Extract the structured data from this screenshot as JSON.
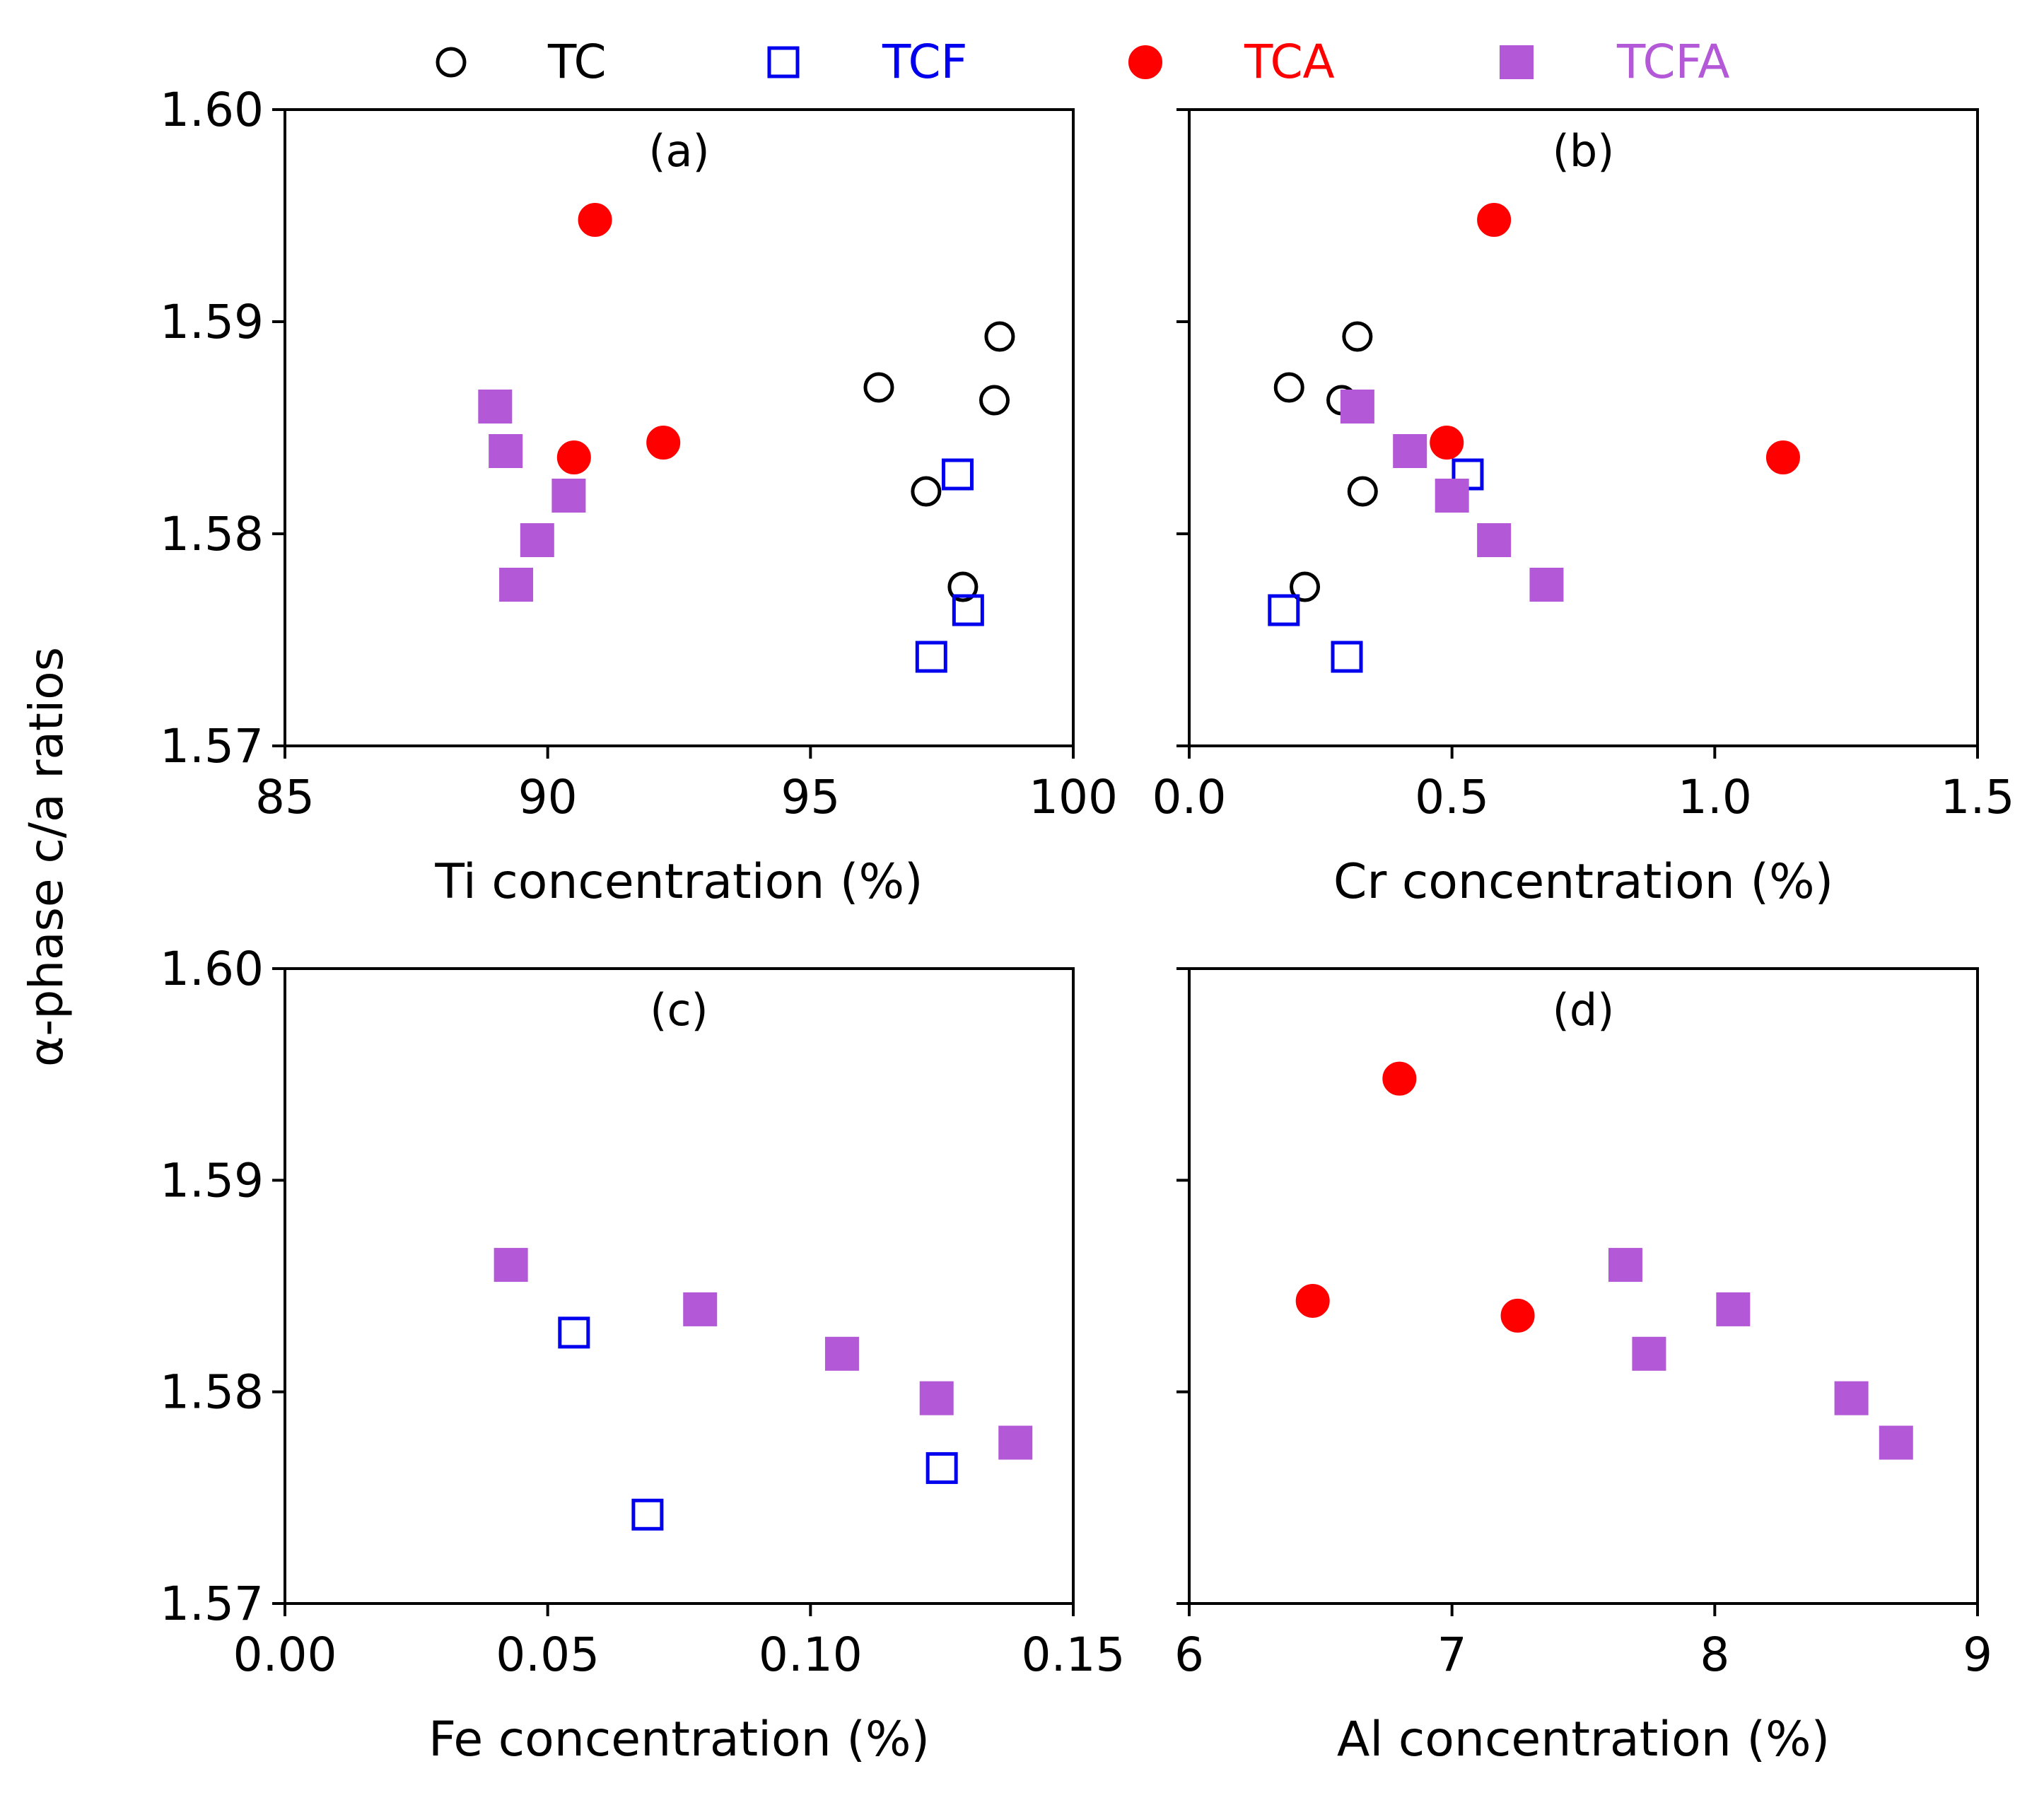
{
  "figure": {
    "ylabel": "α-phase c/a ratios"
  },
  "legend": {
    "placement": "top",
    "entries": [
      {
        "name": "TC",
        "marker": "open-circle",
        "color": "#000000"
      },
      {
        "name": "TCF",
        "marker": "open-square",
        "color": "#0000ee"
      },
      {
        "name": "TCA",
        "marker": "filled-circle",
        "color": "#ff0000"
      },
      {
        "name": "TCFA",
        "marker": "filled-square",
        "color": "#b358d6"
      }
    ]
  },
  "chart_data": [
    {
      "type": "scatter",
      "panel_label": "(a)",
      "xlabel": "Ti concentration (%)",
      "ylabel": "α-phase c/a ratios",
      "xlim": [
        85,
        100
      ],
      "ylim": [
        1.57,
        1.6
      ],
      "xticks": [
        "85",
        "90",
        "95",
        "100"
      ],
      "xtick_values": [
        85,
        90,
        95,
        100
      ],
      "yticks": [
        "1.57",
        "1.58",
        "1.59",
        "1.60"
      ],
      "ytick_values": [
        1.57,
        1.58,
        1.59,
        1.6
      ],
      "series": [
        {
          "name": "TC",
          "points": [
            [
              96.3,
              1.5869
            ],
            [
              98.6,
              1.5893
            ],
            [
              98.5,
              1.5863
            ],
            [
              97.2,
              1.582
            ],
            [
              97.9,
              1.5775
            ]
          ]
        },
        {
          "name": "TCF",
          "points": [
            [
              97.8,
              1.5828
            ],
            [
              98.0,
              1.5764
            ],
            [
              97.3,
              1.5742
            ]
          ]
        },
        {
          "name": "TCA",
          "points": [
            [
              90.9,
              1.5948
            ],
            [
              92.2,
              1.5843
            ],
            [
              90.5,
              1.5836
            ]
          ]
        },
        {
          "name": "TCFA",
          "points": [
            [
              89.0,
              1.586
            ],
            [
              89.2,
              1.5839
            ],
            [
              90.4,
              1.5818
            ],
            [
              89.8,
              1.5797
            ],
            [
              89.4,
              1.5776
            ]
          ]
        }
      ]
    },
    {
      "type": "scatter",
      "panel_label": "(b)",
      "xlabel": "Cr concentration (%)",
      "xlim": [
        0.0,
        1.5
      ],
      "ylim": [
        1.57,
        1.6
      ],
      "xticks": [
        "0.0",
        "0.5",
        "1.0",
        "1.5"
      ],
      "xtick_values": [
        0.0,
        0.5,
        1.0,
        1.5
      ],
      "yticks": [],
      "ytick_values": [
        1.57,
        1.58,
        1.59,
        1.6
      ],
      "series": [
        {
          "name": "TC",
          "points": [
            [
              0.19,
              1.5869
            ],
            [
              0.32,
              1.5893
            ],
            [
              0.29,
              1.5863
            ],
            [
              0.33,
              1.582
            ],
            [
              0.22,
              1.5775
            ]
          ]
        },
        {
          "name": "TCF",
          "points": [
            [
              0.53,
              1.5828
            ],
            [
              0.18,
              1.5764
            ],
            [
              0.3,
              1.5742
            ]
          ]
        },
        {
          "name": "TCA",
          "points": [
            [
              0.58,
              1.5948
            ],
            [
              0.49,
              1.5843
            ],
            [
              1.13,
              1.5836
            ]
          ]
        },
        {
          "name": "TCFA",
          "points": [
            [
              0.32,
              1.586
            ],
            [
              0.42,
              1.5839
            ],
            [
              0.5,
              1.5818
            ],
            [
              0.58,
              1.5797
            ],
            [
              0.68,
              1.5776
            ]
          ]
        }
      ]
    },
    {
      "type": "scatter",
      "panel_label": "(c)",
      "xlabel": "Fe concentration (%)",
      "ylabel": "α-phase c/a ratios",
      "xlim": [
        0.0,
        0.15
      ],
      "ylim": [
        1.57,
        1.6
      ],
      "xticks": [
        "0.00",
        "0.05",
        "0.10",
        "0.15"
      ],
      "xtick_values": [
        0.0,
        0.05,
        0.1,
        0.15
      ],
      "yticks": [
        "1.57",
        "1.58",
        "1.59",
        "1.60"
      ],
      "ytick_values": [
        1.57,
        1.58,
        1.59,
        1.6
      ],
      "series": [
        {
          "name": "TCF",
          "points": [
            [
              0.055,
              1.5828
            ],
            [
              0.125,
              1.5764
            ],
            [
              0.069,
              1.5742
            ]
          ]
        },
        {
          "name": "TCFA",
          "points": [
            [
              0.043,
              1.586
            ],
            [
              0.079,
              1.5839
            ],
            [
              0.106,
              1.5818
            ],
            [
              0.124,
              1.5797
            ],
            [
              0.139,
              1.5776
            ]
          ]
        }
      ]
    },
    {
      "type": "scatter",
      "panel_label": "(d)",
      "xlabel": "Al concentration (%)",
      "xlim": [
        6,
        9
      ],
      "ylim": [
        1.57,
        1.6
      ],
      "xticks": [
        "6",
        "7",
        "8",
        "9"
      ],
      "xtick_values": [
        6,
        7,
        8,
        9
      ],
      "yticks": [],
      "ytick_values": [
        1.57,
        1.58,
        1.59,
        1.6
      ],
      "series": [
        {
          "name": "TCA",
          "points": [
            [
              6.8,
              1.5948
            ],
            [
              6.47,
              1.5843
            ],
            [
              7.25,
              1.5836
            ]
          ]
        },
        {
          "name": "TCFA",
          "points": [
            [
              7.66,
              1.586
            ],
            [
              8.07,
              1.5839
            ],
            [
              7.75,
              1.5818
            ],
            [
              8.52,
              1.5797
            ],
            [
              8.69,
              1.5776
            ]
          ]
        }
      ]
    }
  ]
}
